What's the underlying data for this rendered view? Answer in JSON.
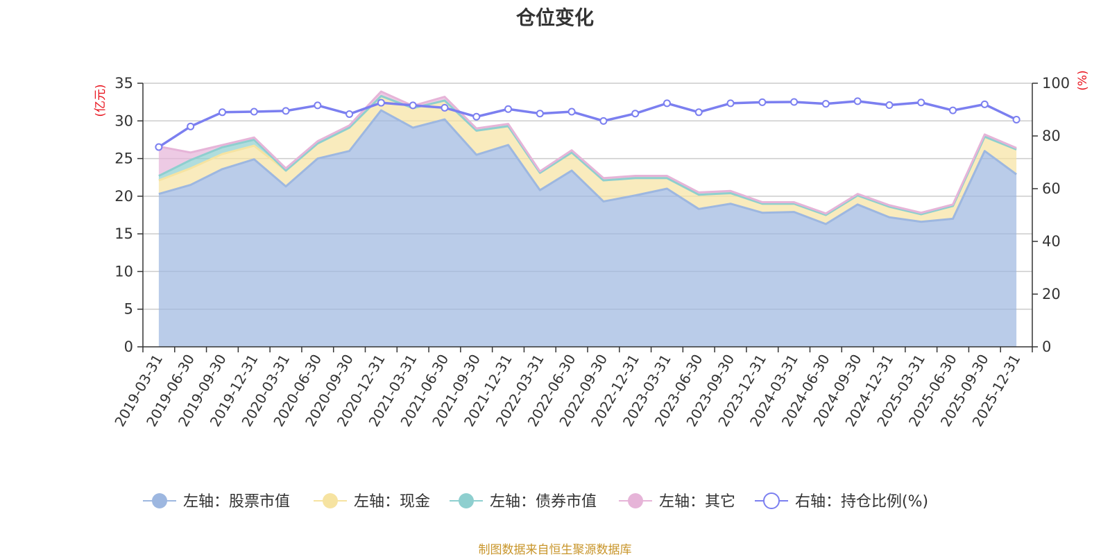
{
  "title": "仓位变化",
  "source_note": "制图数据来自恒生聚源数据库",
  "chart_data": {
    "type": "area",
    "title": "仓位变化",
    "x": [
      "2019-03-31",
      "2019-06-30",
      "2019-09-30",
      "2019-12-31",
      "2020-03-31",
      "2020-06-30",
      "2020-09-30",
      "2020-12-31",
      "2021-03-31",
      "2021-06-30",
      "2021-09-30",
      "2021-12-31",
      "2022-03-31",
      "2022-06-30",
      "2022-09-30",
      "2022-12-31",
      "2023-03-31",
      "2023-06-30",
      "2023-09-30",
      "2023-12-31",
      "2024-03-31",
      "2024-06-30",
      "2024-09-30",
      "2024-12-31",
      "2025-03-31",
      "2025-06-30",
      "2025-09-30",
      "2025-12-31"
    ],
    "left_axis": {
      "unit_label": "(亿元)",
      "ylim": [
        0,
        35
      ],
      "ticks": [
        0,
        5,
        10,
        15,
        20,
        25,
        30,
        35
      ]
    },
    "right_axis": {
      "unit_label": "(%)",
      "ylim": [
        0,
        100
      ],
      "ticks": [
        0,
        20,
        40,
        60,
        80,
        100
      ]
    },
    "stacked": true,
    "grid": true,
    "legend_position": "bottom",
    "series": [
      {
        "name": "左轴：股票市值",
        "axis": "left",
        "type": "area",
        "color": "#9db7e0",
        "values": [
          20.3,
          21.5,
          23.6,
          24.9,
          21.3,
          25.0,
          26.0,
          31.4,
          29.1,
          30.2,
          25.5,
          26.8,
          20.8,
          23.4,
          19.3,
          20.1,
          21.0,
          18.3,
          19.0,
          17.8,
          17.9,
          16.3,
          18.9,
          17.2,
          16.6,
          17.0,
          26.0,
          22.9
        ]
      },
      {
        "name": "左轴：现金",
        "axis": "left",
        "type": "area",
        "color": "#f6e3a1",
        "values": [
          1.8,
          2.2,
          2.0,
          1.8,
          2.1,
          2.0,
          3.1,
          1.9,
          2.6,
          2.5,
          3.2,
          2.5,
          2.3,
          2.4,
          2.8,
          2.3,
          1.4,
          1.9,
          1.4,
          1.2,
          1.1,
          1.2,
          1.2,
          1.4,
          1.0,
          1.7,
          1.9,
          3.3
        ]
      },
      {
        "name": "左轴：债券市值",
        "axis": "left",
        "type": "area",
        "color": "#8ecfcf",
        "values": [
          0.6,
          1.1,
          0.9,
          0.8,
          0,
          0,
          0,
          0,
          0,
          0,
          0,
          0,
          0,
          0,
          0,
          0,
          0,
          0,
          0,
          0,
          0,
          0,
          0,
          0,
          0,
          0,
          0,
          0
        ]
      },
      {
        "name": "左轴：其它",
        "axis": "left",
        "type": "area",
        "color": "#e6b4d8",
        "values": [
          3.9,
          1.0,
          0.3,
          0.3,
          0.3,
          0.3,
          0.3,
          0.6,
          0.3,
          0.5,
          0.3,
          0.3,
          0.2,
          0.3,
          0.3,
          0.3,
          0.3,
          0.3,
          0.3,
          0.2,
          0.2,
          0.2,
          0.2,
          0.2,
          0.2,
          0.2,
          0.3,
          0.2
        ]
      },
      {
        "name": "右轴：持仓比例(%)",
        "axis": "right",
        "type": "line",
        "color": "#7b7ff0",
        "values": [
          75.8,
          83.6,
          89.0,
          89.2,
          89.5,
          91.6,
          88.3,
          92.6,
          91.6,
          90.7,
          87.3,
          90.2,
          88.5,
          89.2,
          85.7,
          88.5,
          92.4,
          89.0,
          92.4,
          92.8,
          92.9,
          92.2,
          93.2,
          91.7,
          92.7,
          89.7,
          92.0,
          86.2
        ]
      }
    ]
  }
}
